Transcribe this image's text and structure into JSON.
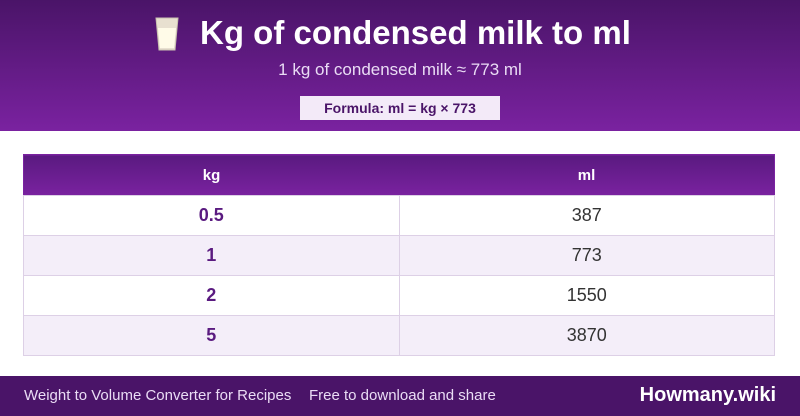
{
  "header": {
    "title": "Kg of condensed milk to ml",
    "subtitle": "1 kg of condensed milk ≈ 773 ml",
    "formula": "Formula: ml = kg × 773"
  },
  "table": {
    "columns": [
      "kg",
      "ml"
    ],
    "rows": [
      [
        0.5,
        387
      ],
      [
        1,
        773
      ],
      [
        2,
        1550
      ],
      [
        5,
        3870
      ]
    ]
  },
  "footer": {
    "left": "Weight to Volume Converter for Recipes",
    "middle": "Free to download and share",
    "brand": "Howmany.wiki"
  }
}
